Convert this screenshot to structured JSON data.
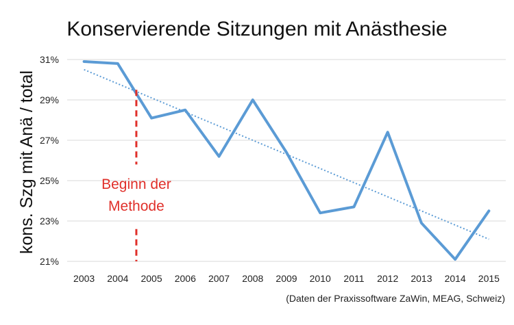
{
  "chart_data": {
    "type": "line",
    "title": "Konservierende Sitzungen mit Anästhesie",
    "xlabel": "",
    "ylabel": "kons. Szg mit Anä / total",
    "x": [
      2003,
      2004,
      2005,
      2006,
      2007,
      2008,
      2009,
      2010,
      2011,
      2012,
      2013,
      2014,
      2015
    ],
    "x_tick_labels": [
      "2003",
      "2004",
      "2005",
      "2006",
      "2007",
      "2008",
      "2009",
      "2010",
      "2011",
      "2012",
      "2013",
      "2014",
      "2015"
    ],
    "y_ticks": [
      21,
      23,
      25,
      27,
      29,
      31
    ],
    "y_tick_labels": [
      "21%",
      "23%",
      "25%",
      "27%",
      "29%",
      "31%"
    ],
    "ylim": [
      21,
      31
    ],
    "grid": true,
    "series": [
      {
        "values": [
          30.9,
          30.8,
          28.1,
          28.5,
          26.2,
          29.0,
          26.4,
          23.4,
          23.7,
          27.4,
          22.9,
          21.1,
          23.5
        ],
        "color": "#5b9bd5",
        "style": "solid"
      }
    ],
    "trendline": {
      "style": "dotted",
      "color": "#5b9bd5",
      "start": [
        2003,
        30.5
      ],
      "end": [
        2015,
        22.1
      ]
    },
    "annotation": {
      "text_lines": [
        "Beginn der",
        "Methode"
      ],
      "x": 2004.55,
      "color": "#e0302a",
      "style": "dashed"
    },
    "source": "(Daten der Praxissoftware ZaWin, MEAG, Schweiz)"
  }
}
